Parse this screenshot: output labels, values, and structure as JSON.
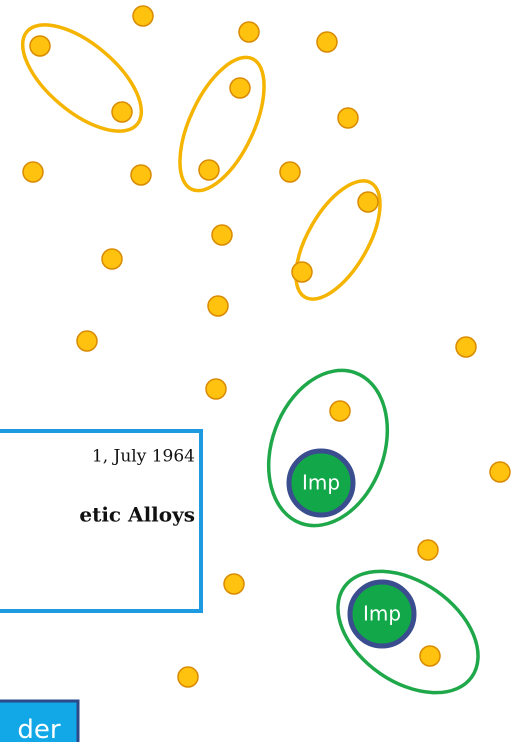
{
  "document": {
    "date_line": "1, July 1964",
    "title_fragment": "etic Alloys"
  },
  "nodes": [
    {
      "label": "Imp"
    },
    {
      "label": "Imp"
    }
  ],
  "button": {
    "label": "der"
  }
}
